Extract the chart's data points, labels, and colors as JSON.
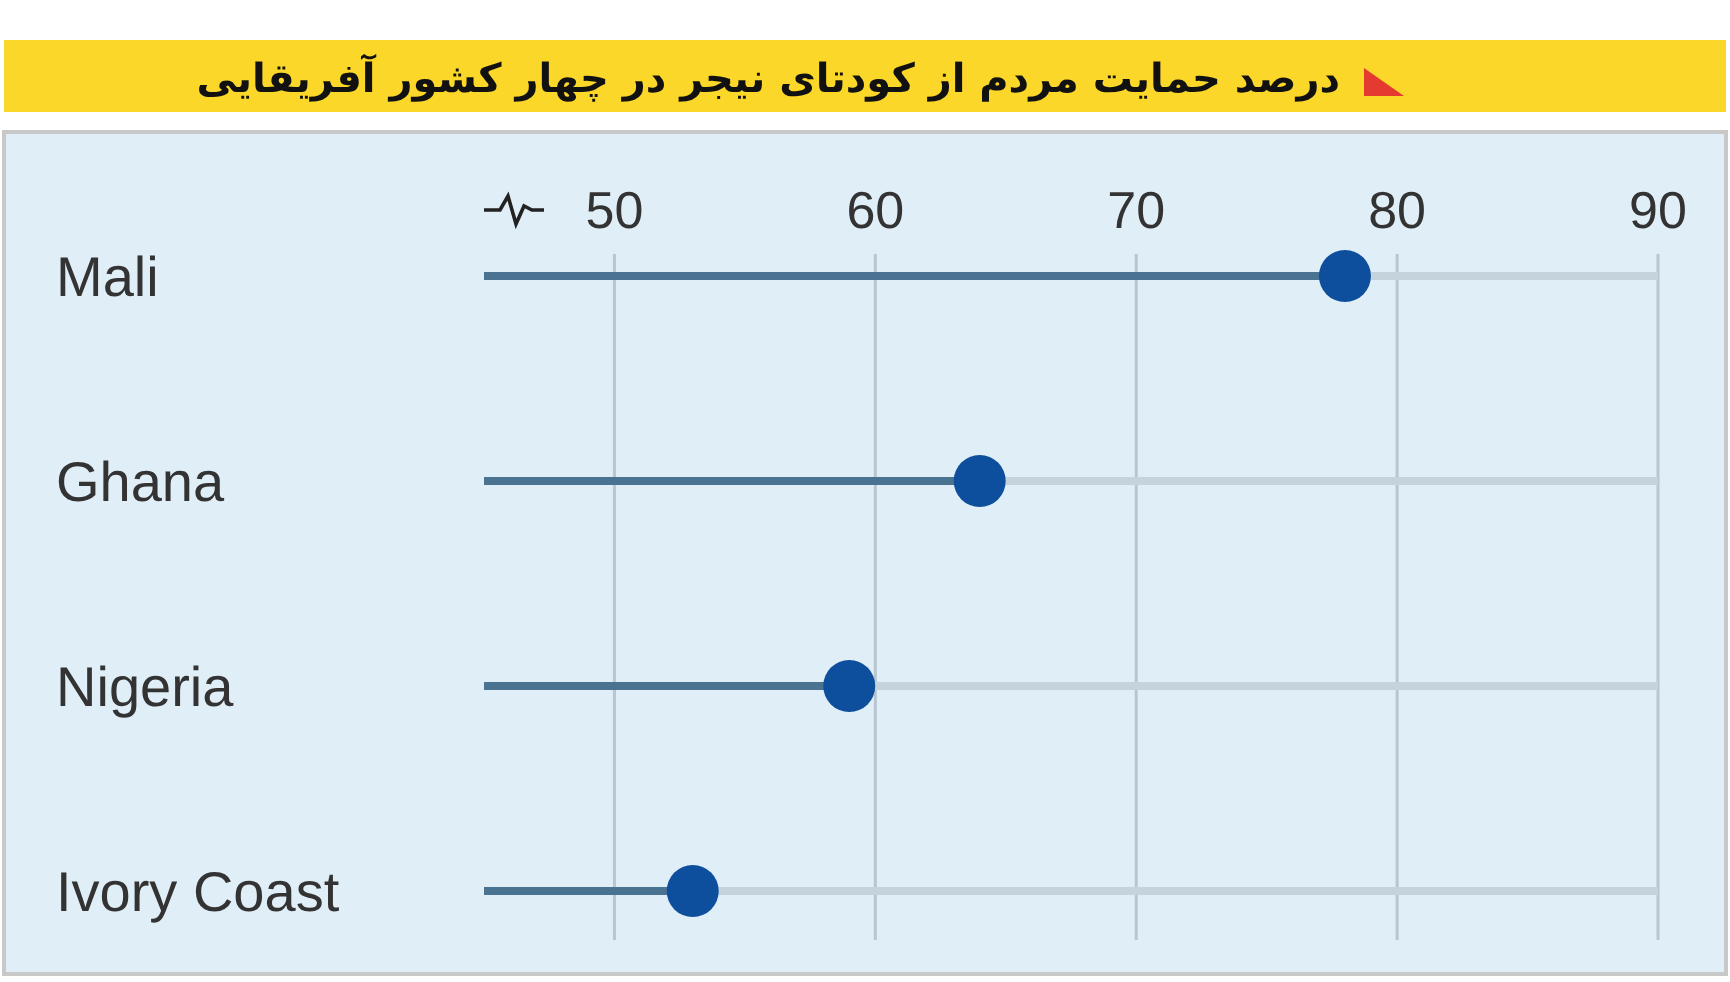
{
  "chart_data": {
    "type": "lollipop",
    "orientation": "horizontal",
    "title": "درصد حمایت مردم از کودتای نیجر در چهار کشور آفریقایی",
    "categories": [
      "Mali",
      "Ghana",
      "Nigeria",
      "Ivory Coast"
    ],
    "values": [
      78,
      64,
      59,
      53
    ],
    "color": "#0d4f9c",
    "marker": "circle",
    "xlim": [
      45,
      90
    ],
    "xticks": [
      50,
      60,
      70,
      80,
      90
    ],
    "grid": "x"
  }
}
